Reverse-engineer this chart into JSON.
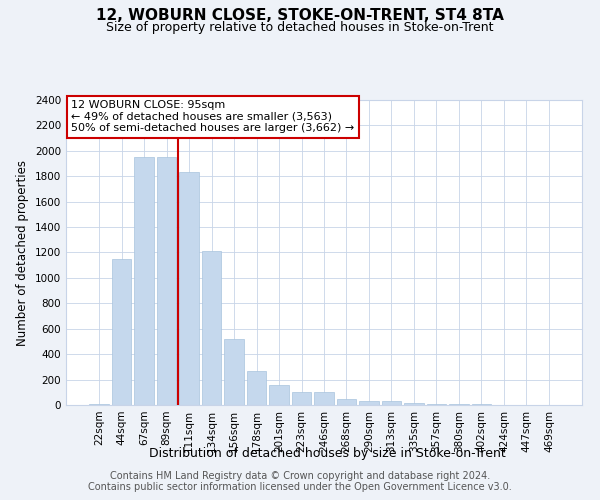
{
  "title": "12, WOBURN CLOSE, STOKE-ON-TRENT, ST4 8TA",
  "subtitle": "Size of property relative to detached houses in Stoke-on-Trent",
  "xlabel": "Distribution of detached houses by size in Stoke-on-Trent",
  "ylabel": "Number of detached properties",
  "categories": [
    "22sqm",
    "44sqm",
    "67sqm",
    "89sqm",
    "111sqm",
    "134sqm",
    "156sqm",
    "178sqm",
    "201sqm",
    "223sqm",
    "246sqm",
    "268sqm",
    "290sqm",
    "313sqm",
    "335sqm",
    "357sqm",
    "380sqm",
    "402sqm",
    "424sqm",
    "447sqm",
    "469sqm"
  ],
  "values": [
    5,
    1150,
    1950,
    1950,
    1830,
    1210,
    520,
    265,
    160,
    100,
    100,
    50,
    30,
    30,
    15,
    10,
    8,
    5,
    3,
    2,
    1
  ],
  "bar_color": "#c5d8ed",
  "bar_edgecolor": "#a8c4de",
  "vline_x": 3.5,
  "vline_color": "#cc0000",
  "annotation_text": "12 WOBURN CLOSE: 95sqm\n← 49% of detached houses are smaller (3,563)\n50% of semi-detached houses are larger (3,662) →",
  "annotation_box_color": "#ffffff",
  "annotation_box_edge": "#cc0000",
  "ylim": [
    0,
    2400
  ],
  "yticks": [
    0,
    200,
    400,
    600,
    800,
    1000,
    1200,
    1400,
    1600,
    1800,
    2000,
    2200,
    2400
  ],
  "footer_line1": "Contains HM Land Registry data © Crown copyright and database right 2024.",
  "footer_line2": "Contains public sector information licensed under the Open Government Licence v3.0.",
  "title_fontsize": 11,
  "subtitle_fontsize": 9,
  "xlabel_fontsize": 9,
  "ylabel_fontsize": 8.5,
  "tick_fontsize": 7.5,
  "footer_fontsize": 7,
  "bg_color": "#eef2f8",
  "plot_bg_color": "#ffffff",
  "grid_color": "#c8d4e8"
}
